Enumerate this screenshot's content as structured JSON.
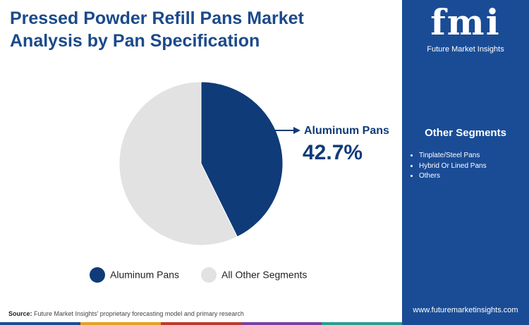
{
  "chart_data": {
    "type": "pie",
    "title": "Pressed Powder Refill Pans Market Analysis by Pan Specification",
    "categories": [
      "Aluminum Pans",
      "All Other Segments"
    ],
    "values": [
      42.7,
      57.3
    ],
    "value_labels": [
      "42.7%",
      null
    ],
    "colors": [
      "#0f3b78",
      "#e2e2e2"
    ],
    "legend": "bottom"
  },
  "sidebar": {
    "title": "Other Segments",
    "items": [
      "Tinplate/Steel Pans",
      "Hybrid Or Lined Pans",
      "Others"
    ]
  },
  "brand": {
    "logo": "fmi",
    "name": "Future Market Insights"
  },
  "source": {
    "label": "Source:",
    "text": "Future Market Insights' proprietary forecasting model and primary research"
  },
  "website": "www.futuremarketinsights.com"
}
